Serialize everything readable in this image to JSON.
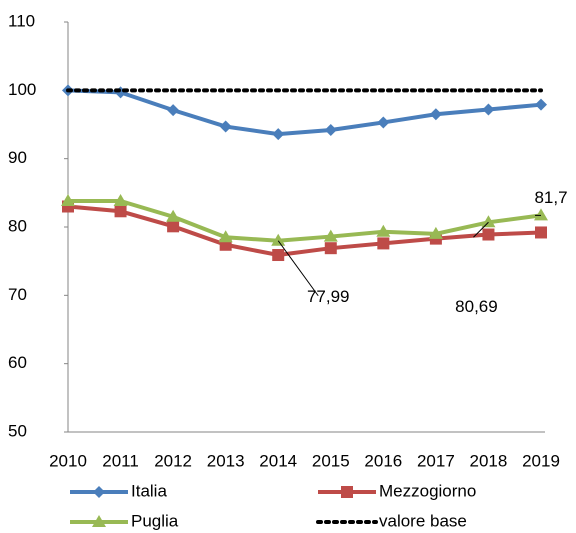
{
  "chart_data": {
    "type": "line",
    "categories": [
      "2010",
      "2011",
      "2012",
      "2013",
      "2014",
      "2015",
      "2016",
      "2017",
      "2018",
      "2019"
    ],
    "series": [
      {
        "name": "Italia",
        "color": "#4a7ebb",
        "marker": "diamond",
        "values": [
          100,
          99.7,
          97.1,
          94.7,
          93.6,
          94.2,
          95.3,
          96.5,
          97.2,
          97.9
        ]
      },
      {
        "name": "Mezzogiorno",
        "color": "#be4b48",
        "marker": "square",
        "values": [
          83,
          82.3,
          80.1,
          77.4,
          75.9,
          76.9,
          77.6,
          78.3,
          78.9,
          79.2
        ]
      },
      {
        "name": "Puglia",
        "color": "#98b954",
        "marker": "triangle",
        "values": [
          83.8,
          83.8,
          81.5,
          78.5,
          77.99,
          78.6,
          79.3,
          79.0,
          80.69,
          81.7
        ],
        "value_labels": [
          null,
          null,
          null,
          null,
          "77,99",
          null,
          null,
          null,
          "80,69",
          "81,7"
        ]
      },
      {
        "name": "valore base",
        "color": "#000000",
        "marker": "none",
        "dotted": true,
        "values": [
          100,
          100,
          100,
          100,
          100,
          100,
          100,
          100,
          100,
          100
        ]
      }
    ],
    "ylim": [
      50,
      110
    ],
    "yticks": [
      50,
      60,
      70,
      80,
      90,
      100,
      110
    ],
    "grid": false
  }
}
